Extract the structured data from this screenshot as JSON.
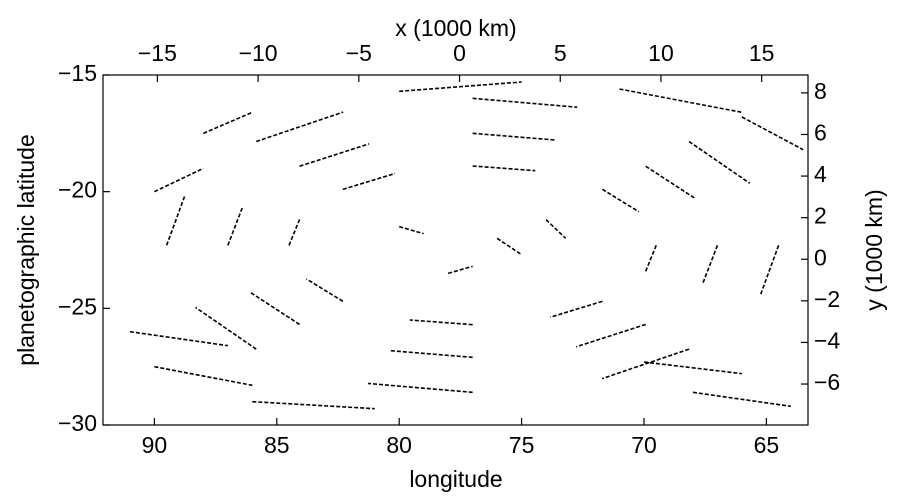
{
  "chart_data": {
    "type": "streak",
    "x_label": "longitude",
    "y_label": "planetographic latitude",
    "x2_label": "x (1000 km)",
    "y2_label": "y (1000 km)",
    "xlim": [
      92.1,
      63.3
    ],
    "xticks": [
      90,
      85,
      80,
      75,
      70,
      65
    ],
    "ylim": [
      -30,
      -15
    ],
    "yticks": [
      {
        "value": -15,
        "label": "−15"
      },
      {
        "value": -20,
        "label": "−20"
      },
      {
        "value": -25,
        "label": "−25"
      },
      {
        "value": -30,
        "label": "−30"
      }
    ],
    "x2lim": [
      -17.7,
      17.3
    ],
    "x2ticks": [
      {
        "value": -15,
        "label": "−15"
      },
      {
        "value": -10,
        "label": "−10"
      },
      {
        "value": -5,
        "label": "−5"
      },
      0,
      5,
      10,
      15
    ],
    "y2lim": [
      -7.97,
      8.86
    ],
    "y2ticks": [
      8,
      6,
      4,
      2,
      0,
      {
        "value": -2,
        "label": "−2"
      },
      {
        "value": -4,
        "label": "−4"
      },
      {
        "value": -6,
        "label": "−6"
      }
    ],
    "color": "#000000",
    "streaks": [
      {
        "x": [
          89.5,
          88.75
        ],
        "y": [
          -22.3,
          -20.15
        ]
      },
      {
        "x": [
          85.84,
          82.29
        ],
        "y": [
          -17.85,
          -16.59
        ]
      },
      {
        "x": [
          77,
          72.73
        ],
        "y": [
          -16.0,
          -16.38
        ]
      },
      {
        "x": [
          68.16,
          65.68
        ],
        "y": [
          -17.85,
          -19.64
        ]
      },
      {
        "x": [
          64.5,
          65.25
        ],
        "y": [
          -22.3,
          -24.45
        ]
      },
      {
        "x": [
          68.16,
          71.71
        ],
        "y": [
          -26.75,
          -28.01
        ]
      },
      {
        "x": [
          77,
          81.27
        ],
        "y": [
          -28.6,
          -28.22
        ]
      },
      {
        "x": [
          85.84,
          88.32
        ],
        "y": [
          -26.75,
          -24.96
        ]
      },
      {
        "x": [
          87,
          86.4
        ],
        "y": [
          -22.3,
          -20.66
        ]
      },
      {
        "x": [
          84.07,
          81.23
        ],
        "y": [
          -18.91,
          -17.95
        ]
      },
      {
        "x": [
          77,
          73.58
        ],
        "y": [
          -17.5,
          -17.79
        ]
      },
      {
        "x": [
          69.93,
          67.94
        ],
        "y": [
          -18.91,
          -20.27
        ]
      },
      {
        "x": [
          67,
          67.6
        ],
        "y": [
          -22.3,
          -23.94
        ]
      },
      {
        "x": [
          69.93,
          72.77
        ],
        "y": [
          -25.69,
          -26.65
        ]
      },
      {
        "x": [
          77,
          80.42
        ],
        "y": [
          -27.1,
          -26.81
        ]
      },
      {
        "x": [
          84.07,
          86.06
        ],
        "y": [
          -25.69,
          -24.33
        ]
      },
      {
        "x": [
          84.5,
          84.05
        ],
        "y": [
          -22.3,
          -21.14
        ]
      },
      {
        "x": [
          82.3,
          80.17
        ],
        "y": [
          -19.9,
          -19.22
        ]
      },
      {
        "x": [
          77,
          74.44
        ],
        "y": [
          -18.9,
          -19.1
        ]
      },
      {
        "x": [
          71.7,
          70.21
        ],
        "y": [
          -19.9,
          -20.86
        ]
      },
      {
        "x": [
          69.5,
          69.95
        ],
        "y": [
          -22.3,
          -23.46
        ]
      },
      {
        "x": [
          71.7,
          73.83
        ],
        "y": [
          -24.7,
          -25.38
        ]
      },
      {
        "x": [
          77,
          79.57
        ],
        "y": [
          -25.7,
          -25.5
        ]
      },
      {
        "x": [
          82.3,
          83.79
        ],
        "y": [
          -24.7,
          -23.74
        ]
      },
      {
        "x": [
          91,
          87
        ],
        "y": [
          -26,
          -26.6
        ]
      },
      {
        "x": [
          90,
          86
        ],
        "y": [
          -27.5,
          -28.3
        ]
      },
      {
        "x": [
          86,
          81
        ],
        "y": [
          -29,
          -29.3
        ]
      },
      {
        "x": [
          70,
          66
        ],
        "y": [
          -27.3,
          -27.8
        ]
      },
      {
        "x": [
          68,
          64
        ],
        "y": [
          -28.6,
          -29.2
        ]
      },
      {
        "x": [
          71,
          66
        ],
        "y": [
          -15.6,
          -16.6
        ]
      },
      {
        "x": [
          66,
          63.5
        ],
        "y": [
          -16.8,
          -18.2
        ]
      },
      {
        "x": [
          90,
          88
        ],
        "y": [
          -20,
          -19
        ]
      },
      {
        "x": [
          88,
          86
        ],
        "y": [
          -17.5,
          -16.6
        ]
      },
      {
        "x": [
          80,
          75
        ],
        "y": [
          -15.7,
          -15.3
        ]
      },
      {
        "x": [
          80,
          79
        ],
        "y": [
          -21.5,
          -21.8
        ]
      },
      {
        "x": [
          76,
          75
        ],
        "y": [
          -22,
          -22.7
        ]
      },
      {
        "x": [
          78,
          77
        ],
        "y": [
          -23.5,
          -23.2
        ]
      },
      {
        "x": [
          74,
          73.2
        ],
        "y": [
          -21.2,
          -22
        ]
      }
    ]
  }
}
